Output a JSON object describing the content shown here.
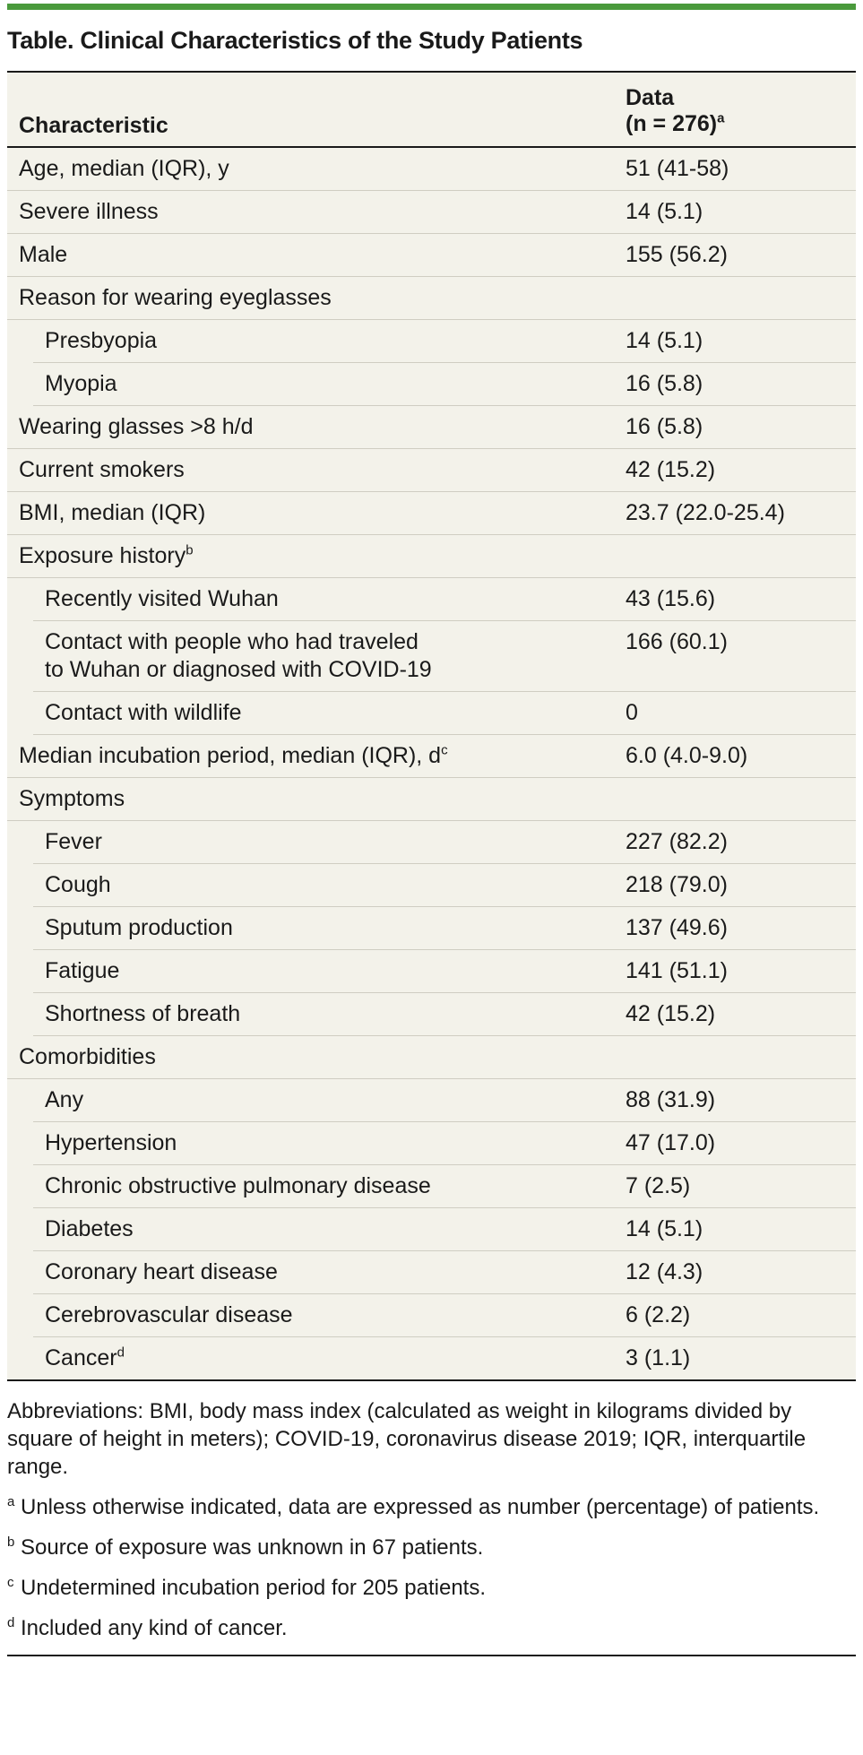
{
  "title": "Table. Clinical Characteristics of the Study Patients",
  "header": {
    "col1": "Characteristic",
    "col2_line1": "Data",
    "col2_line2": "(n = 276)",
    "col2_sup": "a"
  },
  "rows": [
    {
      "label": "Age, median (IQR), y",
      "sup": "",
      "value": "51 (41-58)",
      "indent": false
    },
    {
      "label": "Severe illness",
      "sup": "",
      "value": "14 (5.1)",
      "indent": false
    },
    {
      "label": "Male",
      "sup": "",
      "value": "155 (56.2)",
      "indent": false
    },
    {
      "label": "Reason for wearing eyeglasses",
      "sup": "",
      "value": "",
      "indent": false
    },
    {
      "label": "Presbyopia",
      "sup": "",
      "value": "14 (5.1)",
      "indent": true
    },
    {
      "label": "Myopia",
      "sup": "",
      "value": "16 (5.8)",
      "indent": true
    },
    {
      "label": "Wearing glasses >8 h/d",
      "sup": "",
      "value": "16 (5.8)",
      "indent": false
    },
    {
      "label": "Current smokers",
      "sup": "",
      "value": "42 (15.2)",
      "indent": false
    },
    {
      "label": "BMI, median (IQR)",
      "sup": "",
      "value": "23.7 (22.0-25.4)",
      "indent": false
    },
    {
      "label": "Exposure history",
      "sup": "b",
      "value": "",
      "indent": false
    },
    {
      "label": "Recently visited Wuhan",
      "sup": "",
      "value": "43 (15.6)",
      "indent": true
    },
    {
      "label": "Contact with people who had traveled to Wuhan or diagnosed with COVID-19",
      "sup": "",
      "value": "166 (60.1)",
      "indent": true,
      "label_line1": "Contact with people who had traveled",
      "label_line2": "to Wuhan or diagnosed with COVID-19"
    },
    {
      "label": "Contact with wildlife",
      "sup": "",
      "value": "0",
      "indent": true
    },
    {
      "label": "Median incubation period, median (IQR), d",
      "sup": "c",
      "value": "6.0 (4.0-9.0)",
      "indent": false
    },
    {
      "label": "Symptoms",
      "sup": "",
      "value": "",
      "indent": false
    },
    {
      "label": "Fever",
      "sup": "",
      "value": "227 (82.2)",
      "indent": true
    },
    {
      "label": "Cough",
      "sup": "",
      "value": "218 (79.0)",
      "indent": true
    },
    {
      "label": "Sputum production",
      "sup": "",
      "value": "137 (49.6)",
      "indent": true
    },
    {
      "label": "Fatigue",
      "sup": "",
      "value": "141 (51.1)",
      "indent": true
    },
    {
      "label": "Shortness of breath",
      "sup": "",
      "value": "42 (15.2)",
      "indent": true
    },
    {
      "label": "Comorbidities",
      "sup": "",
      "value": "",
      "indent": false
    },
    {
      "label": "Any",
      "sup": "",
      "value": "88 (31.9)",
      "indent": true
    },
    {
      "label": "Hypertension",
      "sup": "",
      "value": "47 (17.0)",
      "indent": true
    },
    {
      "label": "Chronic obstructive pulmonary disease",
      "sup": "",
      "value": "7 (2.5)",
      "indent": true
    },
    {
      "label": "Diabetes",
      "sup": "",
      "value": "14 (5.1)",
      "indent": true
    },
    {
      "label": "Coronary heart disease",
      "sup": "",
      "value": "12 (4.3)",
      "indent": true
    },
    {
      "label": "Cerebrovascular disease",
      "sup": "",
      "value": "6 (2.2)",
      "indent": true
    },
    {
      "label": "Cancer",
      "sup": "d",
      "value": "3 (1.1)",
      "indent": true
    }
  ],
  "abbreviations": "Abbreviations: BMI, body mass index (calculated as weight in kilograms divided by square of height in meters); COVID-19, coronavirus disease 2019; IQR, interquartile range.",
  "footnotes": [
    {
      "mark": "a",
      "text": "Unless otherwise indicated, data are expressed as number (percentage) of patients."
    },
    {
      "mark": "b",
      "text": "Source of exposure was unknown in 67 patients."
    },
    {
      "mark": "c",
      "text": "Undetermined incubation period for 205 patients."
    },
    {
      "mark": "d",
      "text": "Included any kind of cancer."
    }
  ]
}
